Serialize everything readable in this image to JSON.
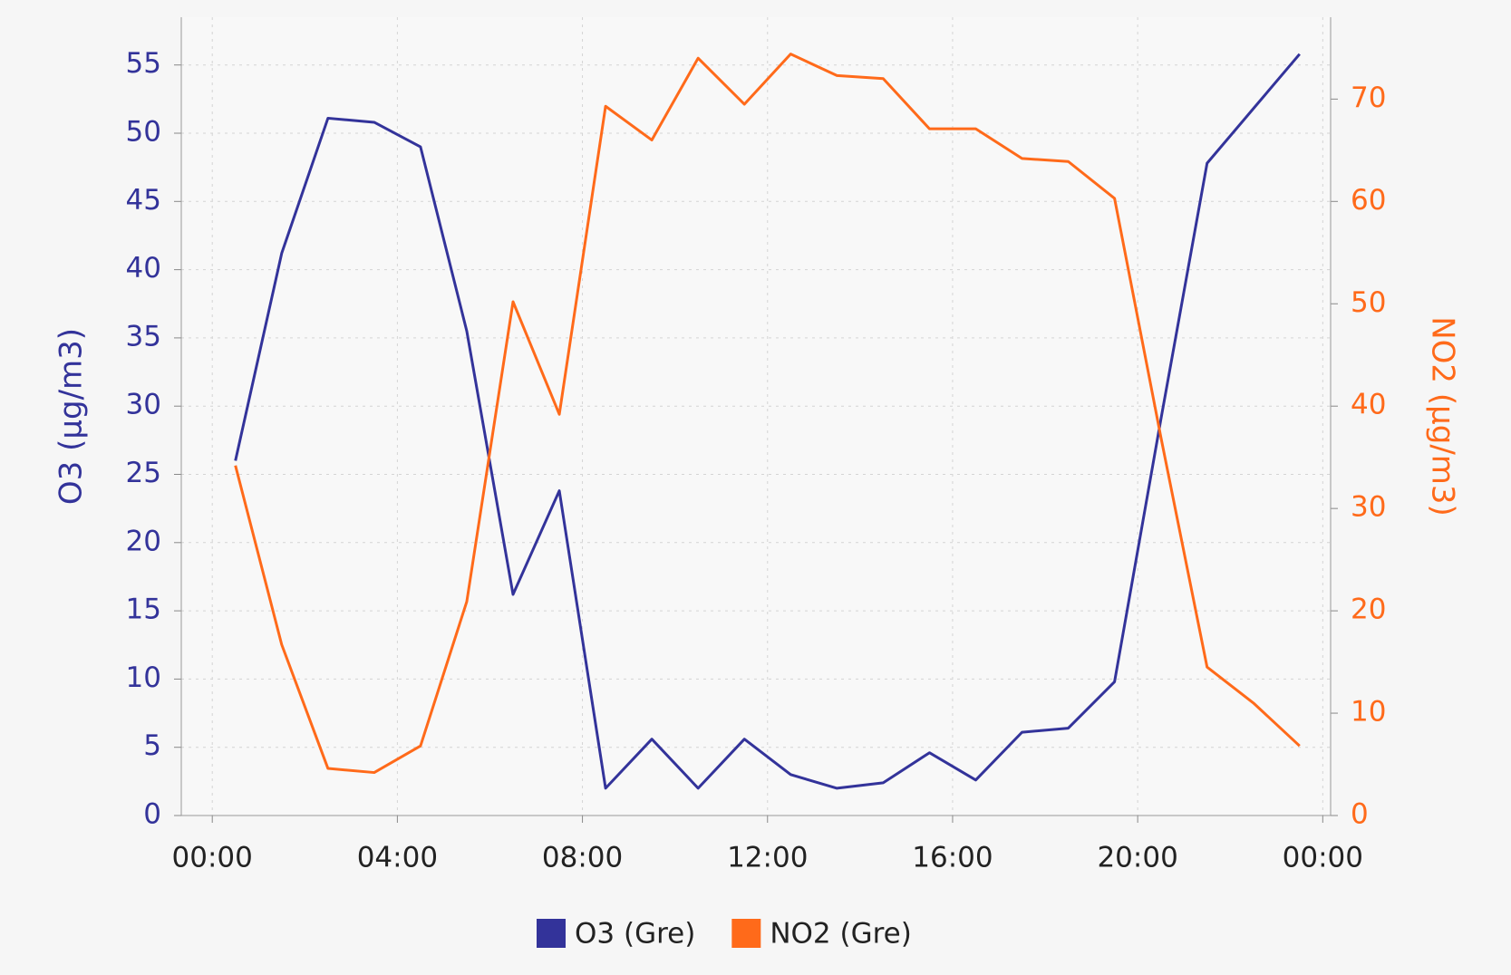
{
  "chart_data": {
    "type": "line",
    "x": [
      0.5,
      1.5,
      2.5,
      3.5,
      4.5,
      5.5,
      6.5,
      7.5,
      8.5,
      9.5,
      10.5,
      11.5,
      12.5,
      13.5,
      14.5,
      15.5,
      16.5,
      17.5,
      18.5,
      19.5,
      20.5,
      21.5,
      22.5,
      23.5
    ],
    "series": [
      {
        "name": "O3 (Gre)",
        "color": "#33339a",
        "axis": "y",
        "values": [
          26,
          41.2,
          51.1,
          50.8,
          49,
          35.5,
          16.2,
          23.8,
          2,
          5.6,
          2,
          5.6,
          3,
          2,
          2.4,
          4.6,
          2.6,
          6.1,
          6.4,
          9.8,
          29,
          47.8,
          51.8,
          55.8
        ]
      },
      {
        "name": "NO2 (Gre)",
        "color": "#ff6a1a",
        "axis": "y2",
        "values": [
          34.2,
          16.7,
          4.6,
          4.2,
          6.8,
          20.9,
          50.2,
          39.2,
          69.3,
          66,
          74,
          69.5,
          74.4,
          72.3,
          72,
          67.1,
          67.1,
          64.2,
          63.9,
          60.3,
          37,
          14.5,
          11,
          6.8
        ]
      }
    ],
    "xlim": [
      -0.67,
      24.17
    ],
    "xticks": [
      {
        "value": 0,
        "label": "00:00"
      },
      {
        "value": 4,
        "label": "04:00"
      },
      {
        "value": 8,
        "label": "08:00"
      },
      {
        "value": 12,
        "label": "12:00"
      },
      {
        "value": 16,
        "label": "16:00"
      },
      {
        "value": 20,
        "label": "20:00"
      },
      {
        "value": 24,
        "label": "00:00"
      }
    ],
    "ylabel": "O3 (µg/m3)",
    "ylim": [
      0,
      58.5
    ],
    "yticks": [
      0,
      5,
      10,
      15,
      20,
      25,
      30,
      35,
      40,
      45,
      50,
      55
    ],
    "y2label": "NO2 (µg/m3)",
    "y2lim": [
      0,
      78
    ],
    "y2ticks": [
      0,
      10,
      20,
      30,
      40,
      50,
      60,
      70
    ],
    "grid": true,
    "legend": "bottom"
  }
}
